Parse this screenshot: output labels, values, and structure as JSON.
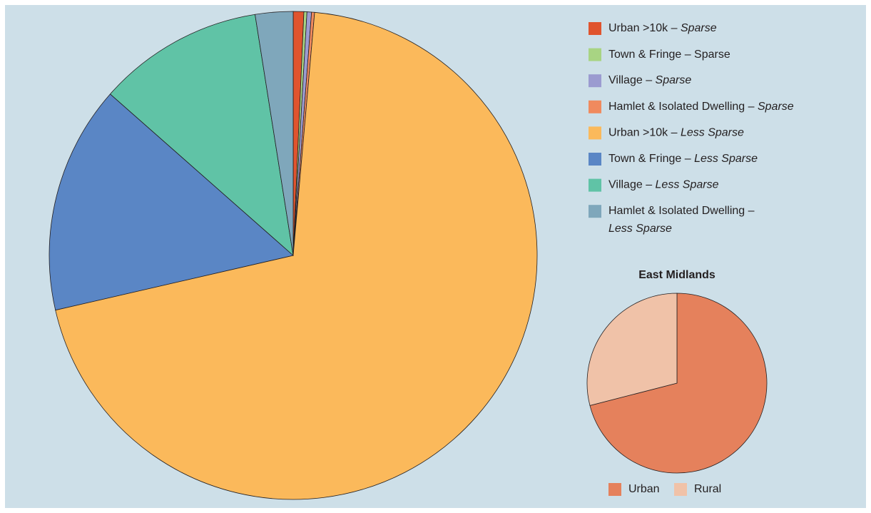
{
  "chart_data": [
    {
      "type": "pie",
      "categories": [
        "Urban >10k – Sparse",
        "Town & Fringe – Sparse",
        "Village – Sparse",
        "Hamlet & Isolated Dwelling – Sparse",
        "Urban >10k – Less Sparse",
        "Town & Fringe – Less Sparse",
        "Village – Less Sparse",
        "Hamlet & Isolated Dwelling – Less Sparse"
      ],
      "values": [
        0.7,
        0.2,
        0.3,
        0.2,
        70.0,
        15.1,
        11.0,
        2.5
      ],
      "colors": [
        "#e0542e",
        "#a8d483",
        "#9b9bd0",
        "#f08a5e",
        "#fbb95b",
        "#5a86c5",
        "#60c3a6",
        "#7fa7bb"
      ],
      "legend_italic": [
        true,
        false,
        true,
        true,
        true,
        true,
        true,
        true
      ],
      "legend": "right"
    },
    {
      "type": "pie",
      "title": "East Midlands",
      "categories": [
        "Urban",
        "Rural"
      ],
      "values": [
        71,
        29
      ],
      "colors": [
        "#e5815c",
        "#f0c2a8"
      ],
      "legend": "bottom"
    }
  ]
}
